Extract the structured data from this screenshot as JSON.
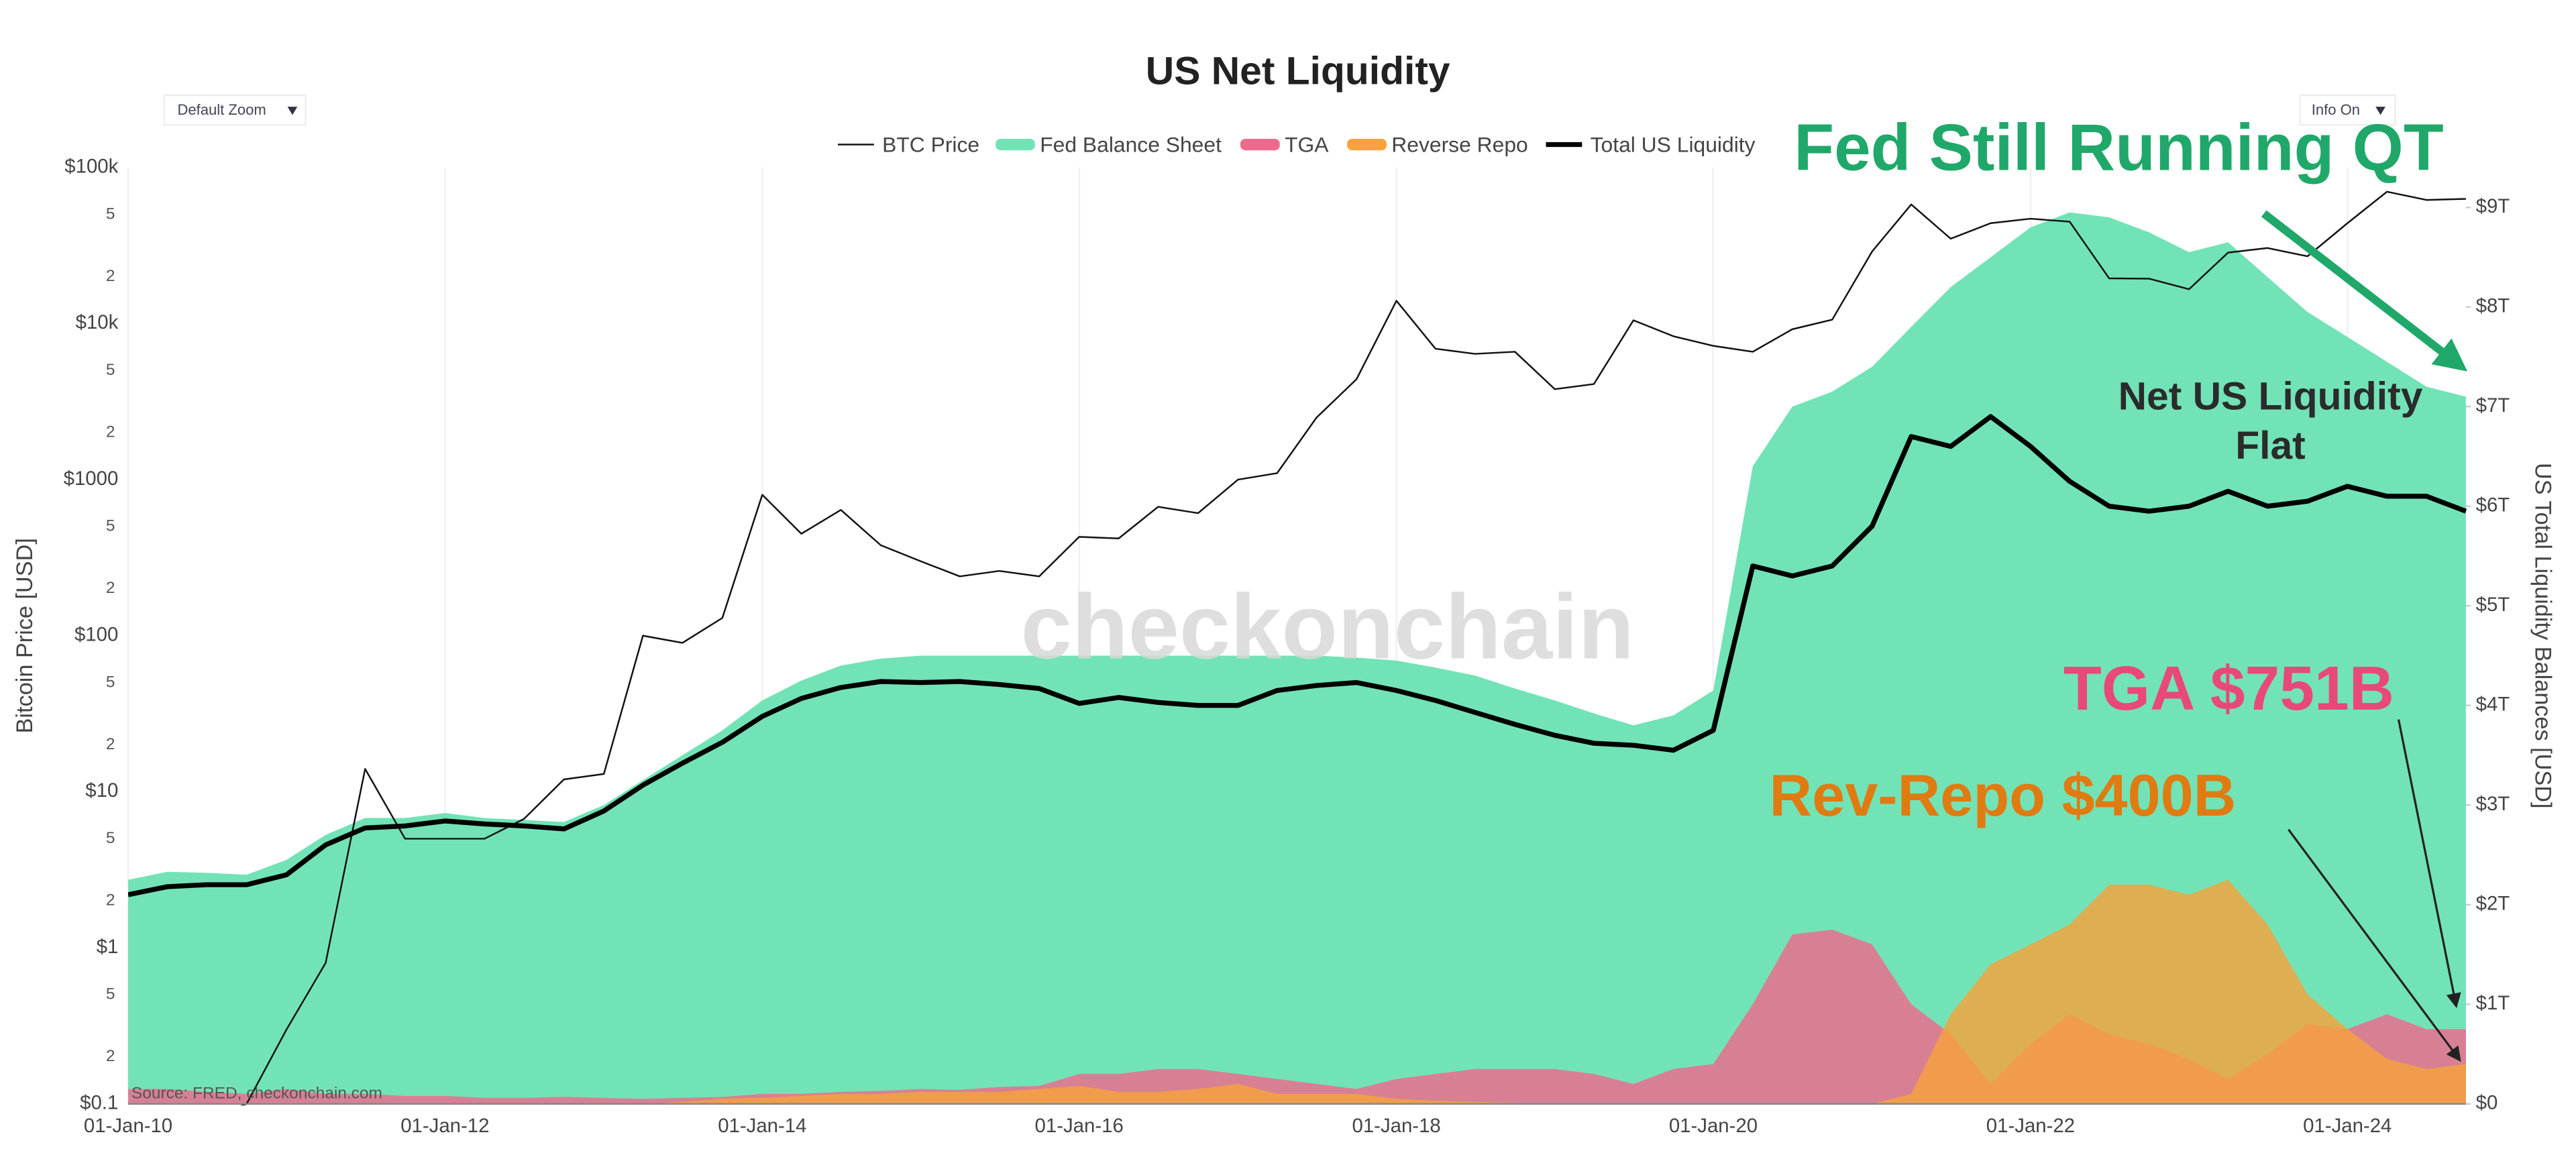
{
  "controls": {
    "zoom": "Default Zoom",
    "info": "Info On"
  },
  "chart_data": {
    "type": "area",
    "title": "US Net Liquidity",
    "watermark": "checkonchain",
    "source": "Source: FRED, checkonchain.com",
    "ylabel": "Bitcoin Price [USD]",
    "y2label": "US Total Liquidity Balances [USD]",
    "ylog": true,
    "grid": true,
    "x": [
      "2010-01-01",
      "2010-04-01",
      "2010-07-01",
      "2010-10-01",
      "2011-01-01",
      "2011-04-01",
      "2011-07-01",
      "2011-10-01",
      "2012-01-01",
      "2012-04-01",
      "2012-07-01",
      "2012-10-01",
      "2013-01-01",
      "2013-04-01",
      "2013-07-01",
      "2013-10-01",
      "2014-01-01",
      "2014-04-01",
      "2014-07-01",
      "2014-10-01",
      "2015-01-01",
      "2015-04-01",
      "2015-07-01",
      "2015-10-01",
      "2016-01-01",
      "2016-04-01",
      "2016-07-01",
      "2016-10-01",
      "2017-01-01",
      "2017-04-01",
      "2017-07-01",
      "2017-10-01",
      "2018-01-01",
      "2018-04-01",
      "2018-07-01",
      "2018-10-01",
      "2019-01-01",
      "2019-04-01",
      "2019-07-01",
      "2019-10-01",
      "2020-01-01",
      "2020-04-01",
      "2020-07-01",
      "2020-10-01",
      "2021-01-01",
      "2021-04-01",
      "2021-07-01",
      "2021-10-01",
      "2022-01-01",
      "2022-04-01",
      "2022-07-01",
      "2022-10-01",
      "2023-01-01",
      "2023-04-01",
      "2023-07-01",
      "2023-10-01",
      "2024-01-01",
      "2024-04-01",
      "2024-07-01",
      "2024-09-30"
    ],
    "xlim": [
      "2010-01-01",
      "2024-09-30"
    ],
    "xticks": [
      {
        "value": "2010-01-01",
        "label": "01-Jan-10"
      },
      {
        "value": "2012-01-01",
        "label": "01-Jan-12"
      },
      {
        "value": "2014-01-01",
        "label": "01-Jan-14"
      },
      {
        "value": "2016-01-01",
        "label": "01-Jan-16"
      },
      {
        "value": "2018-01-01",
        "label": "01-Jan-18"
      },
      {
        "value": "2020-01-01",
        "label": "01-Jan-20"
      },
      {
        "value": "2022-01-01",
        "label": "01-Jan-22"
      },
      {
        "value": "2024-01-01",
        "label": "01-Jan-24"
      }
    ],
    "ylim": [
      0.1,
      100000
    ],
    "yticks": [
      {
        "value": 0.1,
        "label": "$0.1"
      },
      {
        "value": 0.2,
        "label": "2"
      },
      {
        "value": 0.5,
        "label": "5"
      },
      {
        "value": 1,
        "label": "$1"
      },
      2,
      5,
      {
        "value": 10,
        "label": "$10"
      },
      {
        "value": 20,
        "label": "2"
      },
      {
        "value": 50,
        "label": "5"
      },
      {
        "value": 100,
        "label": "$100"
      },
      {
        "value": 200,
        "label": "2"
      },
      {
        "value": 500,
        "label": "5"
      },
      {
        "value": 1000,
        "label": "$1000"
      },
      {
        "value": 2000,
        "label": "2"
      },
      {
        "value": 5000,
        "label": "5"
      },
      {
        "value": 10000,
        "label": "$10k"
      },
      {
        "value": 20000,
        "label": "2"
      },
      {
        "value": 50000,
        "label": "5"
      },
      {
        "value": 100000,
        "label": "$100k"
      }
    ],
    "y2lim": [
      0,
      9.4
    ],
    "y2ticks": [
      {
        "value": 0,
        "label": "$0"
      },
      {
        "value": 1,
        "label": "$1T"
      },
      {
        "value": 2,
        "label": "$2T"
      },
      {
        "value": 3,
        "label": "$3T"
      },
      {
        "value": 4,
        "label": "$4T"
      },
      {
        "value": 5,
        "label": "$5T"
      },
      {
        "value": 6,
        "label": "$6T"
      },
      {
        "value": 7,
        "label": "$7T"
      },
      {
        "value": 8,
        "label": "$8T"
      },
      {
        "value": 9,
        "label": "$9T"
      }
    ],
    "series": [
      {
        "name": "BTC Price",
        "type": "line",
        "color": "#111111",
        "values": [
          null,
          null,
          0.08,
          0.1,
          0.3,
          0.8,
          14,
          5,
          5,
          5,
          6.7,
          12,
          13,
          100,
          90,
          130,
          800,
          450,
          640,
          380,
          300,
          240,
          260,
          240,
          430,
          420,
          670,
          610,
          1000,
          1100,
          2500,
          4400,
          14000,
          6900,
          6400,
          6600,
          3800,
          4100,
          10500,
          8300,
          7200,
          6600,
          9200,
          10600,
          29000,
          58000,
          35000,
          44000,
          47000,
          45000,
          19500,
          19400,
          16600,
          28500,
          30500,
          27000,
          44000,
          70000,
          62000,
          63000
        ]
      },
      {
        "name": "Fed Balance Sheet",
        "type": "area",
        "axis": "y2",
        "color": "#72e3b6",
        "values": [
          2.25,
          2.33,
          2.32,
          2.3,
          2.45,
          2.7,
          2.87,
          2.87,
          2.92,
          2.87,
          2.85,
          2.83,
          3.0,
          3.25,
          3.5,
          3.75,
          4.05,
          4.25,
          4.4,
          4.47,
          4.5,
          4.5,
          4.5,
          4.5,
          4.5,
          4.5,
          4.5,
          4.5,
          4.5,
          4.5,
          4.5,
          4.48,
          4.45,
          4.38,
          4.3,
          4.17,
          4.05,
          3.92,
          3.8,
          3.9,
          4.15,
          6.4,
          7.0,
          7.15,
          7.4,
          7.8,
          8.2,
          8.5,
          8.8,
          8.95,
          8.9,
          8.75,
          8.55,
          8.65,
          8.3,
          7.95,
          7.7,
          7.45,
          7.2,
          7.1
        ]
      },
      {
        "name": "TGA",
        "type": "area",
        "axis": "y2",
        "color": "#ee6a8c",
        "values": [
          0.15,
          0.15,
          0.12,
          0.1,
          0.15,
          0.1,
          0.1,
          0.08,
          0.08,
          0.06,
          0.06,
          0.07,
          0.06,
          0.05,
          0.06,
          0.07,
          0.1,
          0.1,
          0.12,
          0.13,
          0.15,
          0.14,
          0.17,
          0.18,
          0.3,
          0.3,
          0.35,
          0.35,
          0.3,
          0.25,
          0.2,
          0.15,
          0.25,
          0.3,
          0.35,
          0.35,
          0.35,
          0.3,
          0.2,
          0.35,
          0.4,
          1.0,
          1.7,
          1.75,
          1.6,
          1.0,
          0.7,
          0.2,
          0.6,
          0.9,
          0.7,
          0.6,
          0.45,
          0.25,
          0.5,
          0.8,
          0.75,
          0.9,
          0.75,
          0.75
        ]
      },
      {
        "name": "Reverse Repo",
        "type": "area",
        "axis": "y2",
        "color": "#f7a23c",
        "values": [
          0,
          0,
          0,
          0,
          0,
          0,
          0,
          0,
          0,
          0,
          0,
          0,
          0,
          0,
          0.02,
          0.05,
          0.06,
          0.08,
          0.1,
          0.1,
          0.12,
          0.12,
          0.12,
          0.15,
          0.18,
          0.12,
          0.12,
          0.15,
          0.2,
          0.1,
          0.1,
          0.1,
          0.05,
          0.03,
          0.02,
          0.01,
          0,
          0,
          0,
          0,
          0,
          0,
          0,
          0,
          0,
          0.1,
          0.9,
          1.4,
          1.6,
          1.8,
          2.2,
          2.2,
          2.1,
          2.25,
          1.8,
          1.1,
          0.75,
          0.45,
          0.35,
          0.4
        ]
      },
      {
        "name": "Total US Liquidity",
        "type": "line",
        "axis": "y2",
        "color": "#000000",
        "values": [
          2.1,
          2.18,
          2.2,
          2.2,
          2.3,
          2.6,
          2.77,
          2.79,
          2.84,
          2.81,
          2.79,
          2.76,
          2.94,
          3.2,
          3.42,
          3.63,
          3.89,
          4.07,
          4.18,
          4.24,
          4.23,
          4.24,
          4.21,
          4.17,
          4.02,
          4.08,
          4.03,
          4.0,
          4.0,
          4.15,
          4.2,
          4.23,
          4.15,
          4.05,
          3.93,
          3.81,
          3.7,
          3.62,
          3.6,
          3.55,
          3.75,
          5.4,
          5.3,
          5.4,
          5.8,
          6.7,
          6.6,
          6.9,
          6.6,
          6.25,
          6.0,
          5.95,
          6.0,
          6.15,
          6.0,
          6.05,
          6.2,
          6.1,
          6.1,
          5.95
        ]
      }
    ],
    "annotations": [
      {
        "text": "Fed Still Running QT",
        "color": "#20a86a"
      },
      {
        "lines": [
          "Net US Liquidity",
          "Flat"
        ],
        "color": "#2b2b2b"
      },
      {
        "text": "TGA $751B",
        "color": "#e8497a"
      },
      {
        "text": "Rev-Repo $400B",
        "color": "#e07b12"
      }
    ]
  }
}
